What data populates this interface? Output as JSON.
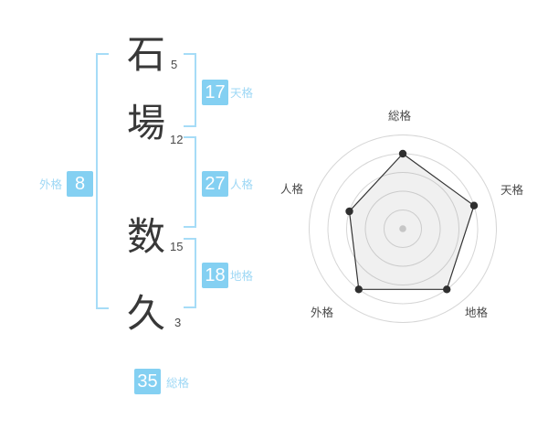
{
  "name_block": {
    "chars": [
      {
        "char": "石",
        "strokes": "5"
      },
      {
        "char": "場",
        "strokes": "12"
      },
      {
        "char": "数",
        "strokes": "15"
      },
      {
        "char": "久",
        "strokes": "3"
      }
    ],
    "kaku": {
      "tenkaku": {
        "value": "17",
        "label": "天格"
      },
      "jinkaku": {
        "value": "27",
        "label": "人格"
      },
      "chikaku": {
        "value": "18",
        "label": "地格"
      },
      "gaikaku": {
        "value": "8",
        "label": "外格"
      },
      "soukaku": {
        "value": "35",
        "label": "総格"
      }
    }
  },
  "colors": {
    "badge_blue": "#84d0f2",
    "bracket_blue": "#a6dcf7",
    "label_blue": "#9fd8f5",
    "chart_line": "#333333",
    "chart_point": "#2f2f2f",
    "chart_grid": "#d6d6d6",
    "chart_fill": "rgba(140,140,140,0.13)",
    "chart_center_dot": "#c6c6c6"
  },
  "chart_data": {
    "type": "radar",
    "title": "",
    "categories": [
      "総格",
      "天格",
      "地格",
      "外格",
      "人格"
    ],
    "values": [
      80,
      80,
      80,
      80,
      60
    ],
    "max": 100,
    "rings": 5,
    "grid_shape": "concentric-circles",
    "legend": "none",
    "start_axis": "top",
    "direction": "clockwise"
  }
}
